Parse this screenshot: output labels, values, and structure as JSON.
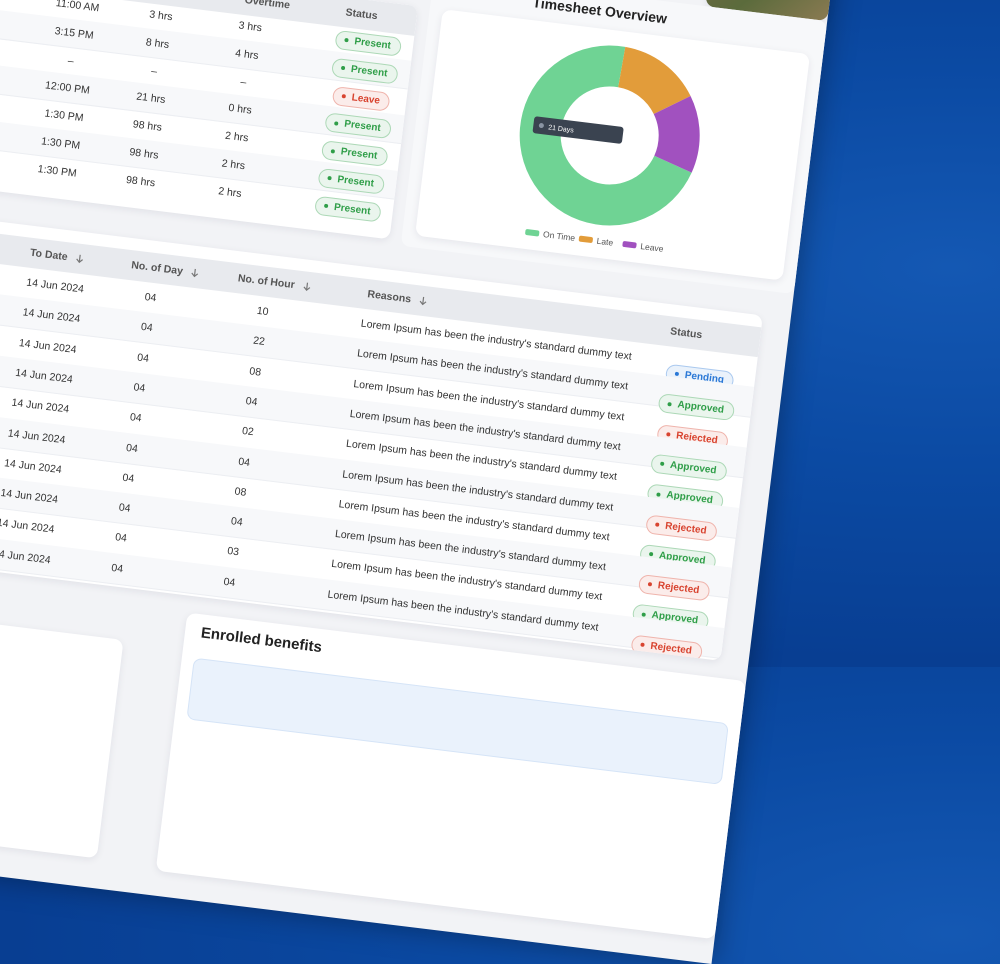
{
  "attendance_table": {
    "headers": [
      "Overtime",
      "Status"
    ],
    "rows": [
      [
        "11:00 AM",
        "3 hrs",
        "3 hrs",
        "Present"
      ],
      [
        "3:15 PM",
        "8 hrs",
        "4 hrs",
        "Present"
      ],
      [
        "–",
        "–",
        "–",
        "Leave"
      ],
      [
        "12:00 PM",
        "21 hrs",
        "0 hrs",
        "Present"
      ],
      [
        "1:30 PM",
        "98 hrs",
        "2 hrs",
        "Present"
      ],
      [
        "1:30 PM",
        "98 hrs",
        "2 hrs",
        "Present"
      ],
      [
        "1:30 PM",
        "98 hrs",
        "2 hrs",
        "Present"
      ]
    ]
  },
  "chart_data": {
    "type": "pie",
    "donut": true,
    "title": "Timesheet Overview",
    "categories": [
      "On Time",
      "Late",
      "Leave"
    ],
    "values": [
      71,
      15,
      14
    ],
    "colors": [
      "#6fd394",
      "#e29c3a",
      "#a151bf"
    ],
    "tooltip": "21 Days"
  },
  "leave_table": {
    "headers": [
      "To Date",
      "No. of Day",
      "No. of Hour",
      "Reasons",
      "Status"
    ],
    "rows": [
      [
        "14 Jun 2024",
        "04",
        "10",
        "Lorem Ipsum has been the industry's standard dummy text",
        "Pending"
      ],
      [
        "14 Jun 2024",
        "04",
        "22",
        "Lorem Ipsum has been the industry's standard dummy text",
        "Approved"
      ],
      [
        "14 Jun 2024",
        "04",
        "08",
        "Lorem Ipsum has been the industry's standard dummy text",
        "Rejected"
      ],
      [
        "14 Jun 2024",
        "04",
        "04",
        "Lorem Ipsum has been the industry's standard dummy text",
        "Approved"
      ],
      [
        "14 Jun 2024",
        "04",
        "02",
        "Lorem Ipsum has been the industry's standard dummy text",
        "Approved"
      ],
      [
        "14 Jun 2024",
        "04",
        "04",
        "Lorem Ipsum has been the industry's standard dummy text",
        "Rejected"
      ],
      [
        "14 Jun 2024",
        "04",
        "08",
        "Lorem Ipsum has been the industry's standard dummy text",
        "Approved"
      ],
      [
        "14 Jun 2024",
        "04",
        "04",
        "Lorem Ipsum has been the industry's standard dummy text",
        "Rejected"
      ],
      [
        "14 Jun 2024",
        "04",
        "03",
        "Lorem Ipsum has been the industry's standard dummy text",
        "Approved"
      ],
      [
        "14 Jun 2024",
        "04",
        "04",
        "Lorem Ipsum has been the industry's standard dummy text",
        "Rejected"
      ]
    ]
  },
  "status_colors": {
    "Present": "#2f9e48",
    "Leave": "#d8432f",
    "Pending": "#2a78d6",
    "Approved": "#2f9e48",
    "Rejected": "#d8432f"
  },
  "benefits": {
    "title": "Enrolled benefits"
  }
}
